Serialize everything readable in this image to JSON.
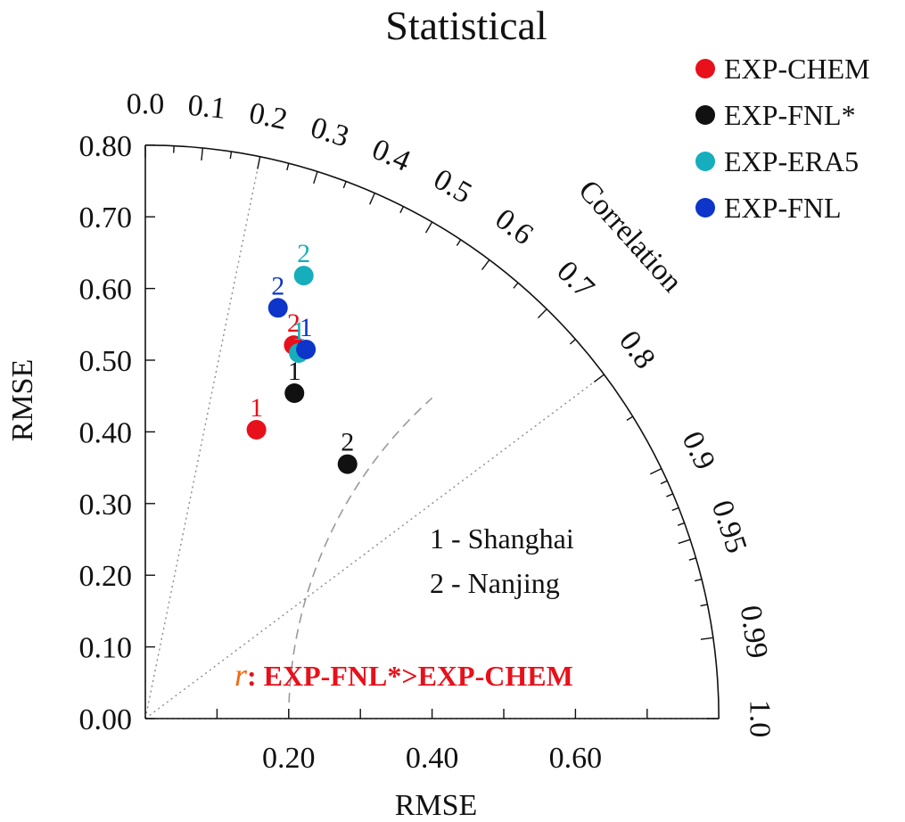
{
  "chart_data": {
    "type": "scatter",
    "subtype": "taylor-diagram",
    "title": "Statistical",
    "ylabel": "RMSE",
    "xlabel": "RMSE",
    "arc_label": "Correlation",
    "xlim": [
      0,
      0.8
    ],
    "ylim": [
      0,
      0.8
    ],
    "grid": true,
    "legend_position": "top-right",
    "y_ticks": [
      {
        "value": 0.0,
        "label": "0.00"
      },
      {
        "value": 0.1,
        "label": "0.10"
      },
      {
        "value": 0.2,
        "label": "0.20"
      },
      {
        "value": 0.3,
        "label": "0.30"
      },
      {
        "value": 0.4,
        "label": "0.40"
      },
      {
        "value": 0.5,
        "label": "0.50"
      },
      {
        "value": 0.6,
        "label": "0.60"
      },
      {
        "value": 0.7,
        "label": "0.70"
      },
      {
        "value": 0.8,
        "label": "0.80"
      }
    ],
    "x_ticks": [
      {
        "value": 0.2,
        "label": "0.20"
      },
      {
        "value": 0.4,
        "label": "0.40"
      },
      {
        "value": 0.6,
        "label": "0.60"
      }
    ],
    "x_minor_ticks": [
      0.1,
      0.3,
      0.5,
      0.7
    ],
    "correlation_ticks": [
      {
        "value": 0.0,
        "label": "0.0"
      },
      {
        "value": 0.1,
        "label": "0.1"
      },
      {
        "value": 0.2,
        "label": "0.2"
      },
      {
        "value": 0.3,
        "label": "0.3"
      },
      {
        "value": 0.4,
        "label": "0.4"
      },
      {
        "value": 0.5,
        "label": "0.5"
      },
      {
        "value": 0.6,
        "label": "0.6"
      },
      {
        "value": 0.7,
        "label": "0.7"
      },
      {
        "value": 0.8,
        "label": "0.8"
      },
      {
        "value": 0.9,
        "label": "0.9"
      },
      {
        "value": 0.95,
        "label": "0.95"
      },
      {
        "value": 0.99,
        "label": "0.99"
      },
      {
        "value": 1.0,
        "label": "1.0"
      }
    ],
    "correlation_minor_ticks": [
      0.05,
      0.15,
      0.25,
      0.35,
      0.45,
      0.55,
      0.65,
      0.75,
      0.85,
      0.91,
      0.92,
      0.93,
      0.94,
      0.96,
      0.97,
      0.98
    ],
    "correlation_reference_lines": [
      0.2,
      0.8,
      1.0
    ],
    "rmse_arcs": [
      0.2,
      0.4,
      0.6
    ],
    "series": [
      {
        "name": "EXP-CHEM",
        "color": "#e8101a",
        "points": [
          {
            "label": "1",
            "x": 0.155,
            "y": 0.403
          },
          {
            "label": "2",
            "x": 0.207,
            "y": 0.521
          }
        ]
      },
      {
        "name": "EXP-FNL*",
        "color": "#111111",
        "points": [
          {
            "label": "1",
            "x": 0.208,
            "y": 0.454
          },
          {
            "label": "2",
            "x": 0.282,
            "y": 0.355
          }
        ]
      },
      {
        "name": "EXP-ERA5",
        "color": "#16aebc",
        "points": [
          {
            "label": "1",
            "x": 0.214,
            "y": 0.51
          },
          {
            "label": "2",
            "x": 0.221,
            "y": 0.618
          }
        ]
      },
      {
        "name": "EXP-FNL",
        "color": "#0d35c9",
        "points": [
          {
            "label": "1",
            "x": 0.224,
            "y": 0.515
          },
          {
            "label": "2",
            "x": 0.185,
            "y": 0.573
          }
        ]
      }
    ],
    "annotations": {
      "station_1": "1 - Shanghai",
      "station_2": "2 - Nanjing",
      "r_symbol": "r",
      "r_text": ": EXP-FNL*>EXP-CHEM"
    },
    "colors": {
      "annotation_red": "#e8101a",
      "r_symbol_orange": "#f06a12"
    }
  }
}
